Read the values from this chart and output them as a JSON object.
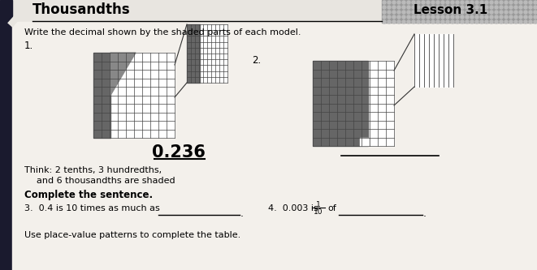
{
  "paper_color": "#e8e5e0",
  "title": "Thousandths",
  "lesson": "Lesson 3.1",
  "subtitle": "Write the decimal shown by the shaded parts of each model.",
  "num1": "1.",
  "num2": "2.",
  "decimal_answer": "0.236",
  "think_line1": "Think: 2 tenths, 3 hundredths,",
  "think_line2": "and 6 thousandths are shaded",
  "complete_sentence": "Complete the sentence.",
  "q3": "3.  0.4 is 10 times as much as",
  "q4_pre": "4.  0.003 is",
  "q4_frac_num": "1",
  "q4_frac_den": "10",
  "q4_of": "of",
  "use_place": "Use place-value patterns to complete the table.",
  "dark_left": "#1a1a2e",
  "dot_bg": "#999999",
  "dot_color": "#bbbbbb",
  "shade_dark": "#666666",
  "shade_medium": "#888888",
  "grid_line": "#444444",
  "white": "#ffffff",
  "black": "#111111",
  "lesson_bg": "#777777"
}
